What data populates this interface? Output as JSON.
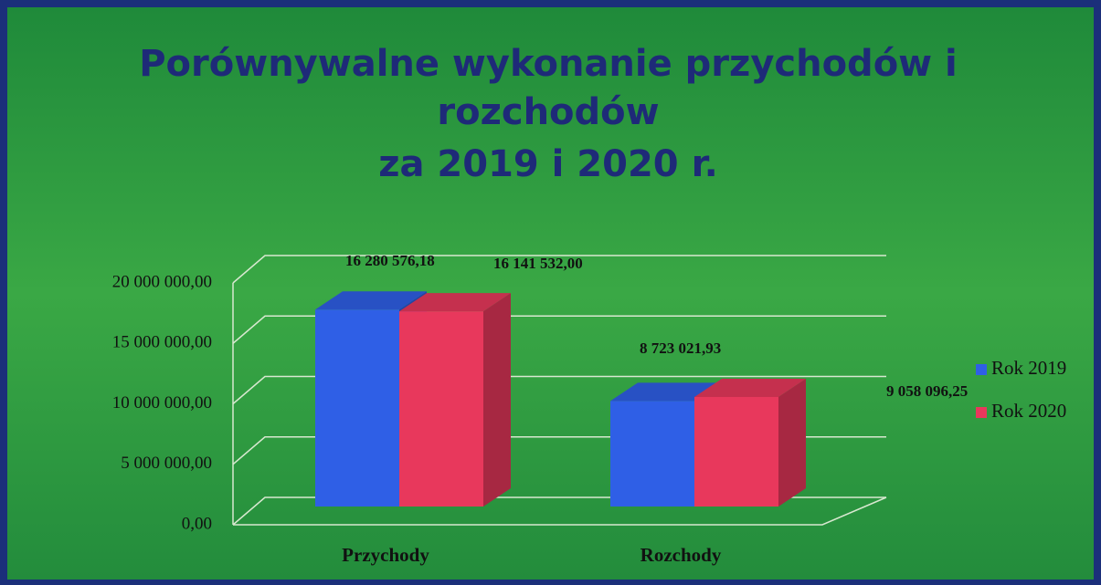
{
  "chart_data": {
    "type": "bar",
    "title": [
      "Porównywalne wykonanie przychodów i",
      "rozchodów",
      "za 2019 i 2020 r."
    ],
    "categories": [
      "Przychody",
      "Rozchody"
    ],
    "series": [
      {
        "name": "Rok 2019",
        "color": "#2f5fe6",
        "values": [
          16280576.18,
          8723021.93
        ],
        "value_labels": [
          "16 280 576,18",
          "8 723 021,93"
        ]
      },
      {
        "name": "Rok 2020",
        "color": "#e8385c",
        "values": [
          16141532.0,
          9058096.25
        ],
        "value_labels": [
          "16 141 532,00",
          "9 058 096,25"
        ]
      }
    ],
    "ylim": [
      0,
      20000000
    ],
    "yticks": [
      {
        "value": 0,
        "label": "0,00"
      },
      {
        "value": 5000000,
        "label": "5 000 000,00"
      },
      {
        "value": 10000000,
        "label": "10 000 000,00"
      },
      {
        "value": 15000000,
        "label": "15 000 000,00"
      },
      {
        "value": 20000000,
        "label": "20 000 000,00"
      }
    ],
    "grid": true,
    "legend": "right"
  }
}
